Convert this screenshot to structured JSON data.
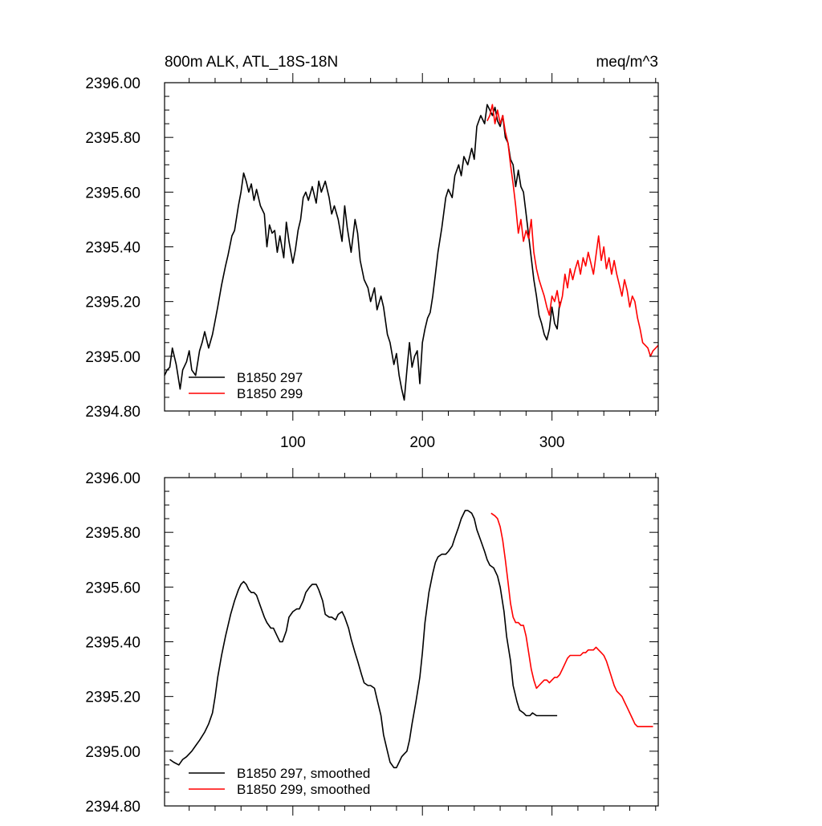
{
  "chart_data": [
    {
      "type": "line",
      "title": "800m ALK, ATL_18S-18N",
      "units": "meq/m^3",
      "xlabel": "",
      "ylabel": "",
      "xlim": [
        1,
        382
      ],
      "ylim": [
        2394.8,
        2396.0
      ],
      "x_ticks": [
        100,
        200,
        300
      ],
      "x_tick_labels": [
        "100",
        "200",
        "300"
      ],
      "y_ticks": [
        2394.8,
        2395.0,
        2395.2,
        2395.4,
        2395.6,
        2395.8,
        2396.0
      ],
      "y_tick_labels": [
        "2394.80",
        "2395.00",
        "2395.20",
        "2395.40",
        "2395.60",
        "2395.80",
        "2396.00"
      ],
      "grid": false,
      "legend_position": "bottom-left",
      "series": [
        {
          "name": "B1850 297",
          "color": "#000000",
          "x": [
            1,
            3,
            5,
            7,
            10,
            13,
            15,
            18,
            20,
            22,
            25,
            28,
            30,
            32,
            35,
            38,
            40,
            42,
            45,
            48,
            50,
            53,
            55,
            58,
            60,
            62,
            64,
            66,
            68,
            70,
            72,
            75,
            78,
            80,
            82,
            84,
            86,
            88,
            90,
            93,
            95,
            97,
            100,
            102,
            104,
            106,
            108,
            110,
            112,
            115,
            118,
            120,
            122,
            125,
            128,
            130,
            132,
            135,
            138,
            140,
            142,
            145,
            148,
            150,
            152,
            155,
            158,
            160,
            163,
            165,
            168,
            170,
            173,
            175,
            178,
            180,
            182,
            184,
            186,
            188,
            190,
            192,
            194,
            196,
            198,
            200,
            202,
            204,
            206,
            208,
            210,
            212,
            215,
            218,
            220,
            223,
            225,
            228,
            230,
            232,
            235,
            238,
            240,
            242,
            245,
            248,
            250,
            252,
            254,
            256,
            258,
            260,
            262,
            264,
            266,
            268,
            270,
            272,
            274,
            276,
            278,
            280,
            282,
            284,
            286,
            288,
            290,
            292,
            294,
            296,
            298,
            300,
            302,
            304,
            306
          ],
          "values": [
            2394.93,
            2394.95,
            2394.96,
            2395.03,
            2394.97,
            2394.88,
            2394.95,
            2394.98,
            2395.02,
            2394.95,
            2394.93,
            2395.02,
            2395.05,
            2395.09,
            2395.03,
            2395.08,
            2395.13,
            2395.18,
            2395.26,
            2395.33,
            2395.37,
            2395.44,
            2395.46,
            2395.55,
            2395.6,
            2395.67,
            2395.64,
            2395.6,
            2395.63,
            2395.57,
            2395.61,
            2395.55,
            2395.52,
            2395.4,
            2395.48,
            2395.45,
            2395.46,
            2395.38,
            2395.44,
            2395.36,
            2395.49,
            2395.42,
            2395.34,
            2395.39,
            2395.46,
            2395.5,
            2395.58,
            2395.6,
            2395.57,
            2395.62,
            2395.56,
            2395.64,
            2395.6,
            2395.64,
            2395.58,
            2395.52,
            2395.55,
            2395.5,
            2395.42,
            2395.55,
            2395.47,
            2395.38,
            2395.5,
            2395.45,
            2395.35,
            2395.28,
            2395.25,
            2395.2,
            2395.25,
            2395.17,
            2395.22,
            2395.18,
            2395.08,
            2395.05,
            2394.97,
            2395.01,
            2394.93,
            2394.88,
            2394.84,
            2394.95,
            2395.05,
            2394.96,
            2395.0,
            2395.02,
            2394.9,
            2395.05,
            2395.1,
            2395.14,
            2395.16,
            2395.22,
            2395.3,
            2395.38,
            2395.47,
            2395.58,
            2395.61,
            2395.58,
            2395.66,
            2395.7,
            2395.66,
            2395.73,
            2395.7,
            2395.76,
            2395.72,
            2395.84,
            2395.88,
            2395.85,
            2395.92,
            2395.9,
            2395.88,
            2395.91,
            2395.86,
            2395.84,
            2395.88,
            2395.8,
            2395.78,
            2395.72,
            2395.7,
            2395.62,
            2395.68,
            2395.62,
            2395.6,
            2395.52,
            2395.44,
            2395.36,
            2395.28,
            2395.22,
            2395.15,
            2395.12,
            2395.08,
            2395.06,
            2395.1,
            2395.18,
            2395.12,
            2395.1,
            2395.2
          ]
        },
        {
          "name": "B1850 299",
          "color": "#ff0000",
          "x": [
            250,
            252,
            254,
            256,
            258,
            260,
            262,
            264,
            266,
            268,
            270,
            272,
            274,
            276,
            278,
            280,
            282,
            284,
            286,
            288,
            290,
            292,
            294,
            296,
            298,
            300,
            302,
            304,
            306,
            308,
            310,
            312,
            314,
            316,
            318,
            320,
            322,
            324,
            326,
            328,
            330,
            332,
            334,
            336,
            338,
            340,
            342,
            344,
            346,
            348,
            350,
            352,
            354,
            356,
            358,
            360,
            362,
            364,
            366,
            368,
            370,
            372,
            374,
            376,
            378,
            380,
            382
          ],
          "values": [
            2395.86,
            2395.88,
            2395.92,
            2395.85,
            2395.9,
            2395.85,
            2395.88,
            2395.82,
            2395.78,
            2395.7,
            2395.63,
            2395.55,
            2395.45,
            2395.5,
            2395.42,
            2395.46,
            2395.43,
            2395.5,
            2395.38,
            2395.32,
            2395.28,
            2395.25,
            2395.22,
            2395.18,
            2395.15,
            2395.22,
            2395.2,
            2395.24,
            2395.18,
            2395.22,
            2395.3,
            2395.25,
            2395.32,
            2395.28,
            2395.32,
            2395.35,
            2395.3,
            2395.36,
            2395.33,
            2395.38,
            2395.34,
            2395.3,
            2395.37,
            2395.44,
            2395.35,
            2395.4,
            2395.32,
            2395.36,
            2395.3,
            2395.35,
            2395.3,
            2395.26,
            2395.22,
            2395.28,
            2395.24,
            2395.18,
            2395.22,
            2395.2,
            2395.14,
            2395.1,
            2395.05,
            2395.04,
            2395.03,
            2395.0,
            2395.02,
            2395.03,
            2395.04
          ]
        }
      ]
    },
    {
      "type": "line",
      "title": "",
      "xlabel": "",
      "ylabel": "",
      "xlim": [
        1,
        382
      ],
      "ylim": [
        2394.8,
        2396.0
      ],
      "x_ticks": [
        100,
        200,
        300
      ],
      "x_tick_labels": [],
      "y_ticks": [
        2394.8,
        2395.0,
        2395.2,
        2395.4,
        2395.6,
        2395.8,
        2396.0
      ],
      "y_tick_labels": [
        "2394.80",
        "2395.00",
        "2395.20",
        "2395.40",
        "2395.60",
        "2395.80",
        "2396.00"
      ],
      "grid": false,
      "legend_position": "bottom-left",
      "series": [
        {
          "name": "B1850 297, smoothed",
          "color": "#000000",
          "x": [
            5,
            8,
            12,
            15,
            18,
            22,
            25,
            28,
            32,
            35,
            38,
            40,
            42,
            45,
            48,
            50,
            52,
            55,
            58,
            60,
            62,
            64,
            66,
            68,
            70,
            72,
            75,
            78,
            80,
            83,
            85,
            88,
            90,
            92,
            95,
            97,
            100,
            103,
            105,
            108,
            110,
            113,
            115,
            118,
            120,
            123,
            125,
            128,
            130,
            133,
            135,
            138,
            140,
            143,
            145,
            148,
            150,
            153,
            155,
            158,
            160,
            163,
            165,
            168,
            170,
            173,
            175,
            178,
            180,
            182,
            184,
            186,
            188,
            190,
            192,
            195,
            198,
            200,
            202,
            205,
            208,
            210,
            212,
            215,
            218,
            220,
            223,
            225,
            228,
            230,
            233,
            235,
            238,
            240,
            242,
            245,
            248,
            250,
            252,
            255,
            258,
            260,
            263,
            265,
            268,
            270,
            273,
            275,
            278,
            280,
            283,
            285,
            288,
            290,
            293,
            295,
            298,
            300,
            302,
            304
          ],
          "values": [
            2394.97,
            2394.96,
            2394.95,
            2394.97,
            2394.98,
            2395.0,
            2395.02,
            2395.04,
            2395.07,
            2395.1,
            2395.14,
            2395.2,
            2395.27,
            2395.35,
            2395.42,
            2395.46,
            2395.5,
            2395.55,
            2395.59,
            2395.61,
            2395.62,
            2395.61,
            2395.59,
            2395.58,
            2395.58,
            2395.57,
            2395.53,
            2395.49,
            2395.47,
            2395.45,
            2395.45,
            2395.42,
            2395.4,
            2395.4,
            2395.44,
            2395.49,
            2395.51,
            2395.52,
            2395.52,
            2395.55,
            2395.58,
            2395.6,
            2395.61,
            2395.61,
            2395.59,
            2395.55,
            2395.5,
            2395.49,
            2395.49,
            2395.48,
            2395.5,
            2395.51,
            2395.49,
            2395.45,
            2395.41,
            2395.36,
            2395.33,
            2395.28,
            2395.25,
            2395.24,
            2395.24,
            2395.23,
            2395.19,
            2395.13,
            2395.06,
            2395.0,
            2394.96,
            2394.94,
            2394.94,
            2394.96,
            2394.98,
            2394.99,
            2395.0,
            2395.04,
            2395.1,
            2395.18,
            2395.27,
            2395.36,
            2395.47,
            2395.58,
            2395.65,
            2395.69,
            2395.71,
            2395.72,
            2395.72,
            2395.73,
            2395.75,
            2395.78,
            2395.82,
            2395.85,
            2395.88,
            2395.88,
            2395.87,
            2395.85,
            2395.81,
            2395.77,
            2395.73,
            2395.7,
            2395.68,
            2395.67,
            2395.64,
            2395.6,
            2395.51,
            2395.42,
            2395.33,
            2395.24,
            2395.18,
            2395.15,
            2395.14,
            2395.13,
            2395.13,
            2395.14,
            2395.13,
            2395.13,
            2395.13,
            2395.13,
            2395.13,
            2395.13,
            2395.13,
            2395.13
          ]
        },
        {
          "name": "B1850 299, smoothed",
          "color": "#ff0000",
          "x": [
            253,
            256,
            258,
            260,
            262,
            264,
            266,
            268,
            270,
            272,
            274,
            276,
            278,
            280,
            282,
            284,
            286,
            288,
            290,
            292,
            294,
            296,
            298,
            300,
            302,
            304,
            306,
            308,
            310,
            312,
            314,
            316,
            318,
            320,
            322,
            324,
            326,
            328,
            330,
            332,
            334,
            336,
            338,
            340,
            342,
            344,
            346,
            348,
            350,
            352,
            354,
            356,
            358,
            360,
            362,
            364,
            366,
            368,
            370,
            372,
            374,
            376,
            378
          ],
          "values": [
            2395.87,
            2395.86,
            2395.85,
            2395.82,
            2395.77,
            2395.7,
            2395.62,
            2395.54,
            2395.49,
            2395.47,
            2395.47,
            2395.46,
            2395.46,
            2395.42,
            2395.36,
            2395.3,
            2395.26,
            2395.23,
            2395.24,
            2395.25,
            2395.26,
            2395.26,
            2395.25,
            2395.26,
            2395.27,
            2395.27,
            2395.28,
            2395.3,
            2395.32,
            2395.34,
            2395.35,
            2395.35,
            2395.35,
            2395.35,
            2395.35,
            2395.36,
            2395.36,
            2395.37,
            2395.37,
            2395.37,
            2395.38,
            2395.37,
            2395.36,
            2395.35,
            2395.33,
            2395.3,
            2395.27,
            2395.24,
            2395.22,
            2395.21,
            2395.2,
            2395.18,
            2395.16,
            2395.14,
            2395.12,
            2395.1,
            2395.09,
            2395.09,
            2395.09,
            2395.09,
            2395.09,
            2395.09,
            2395.09
          ]
        }
      ]
    }
  ]
}
